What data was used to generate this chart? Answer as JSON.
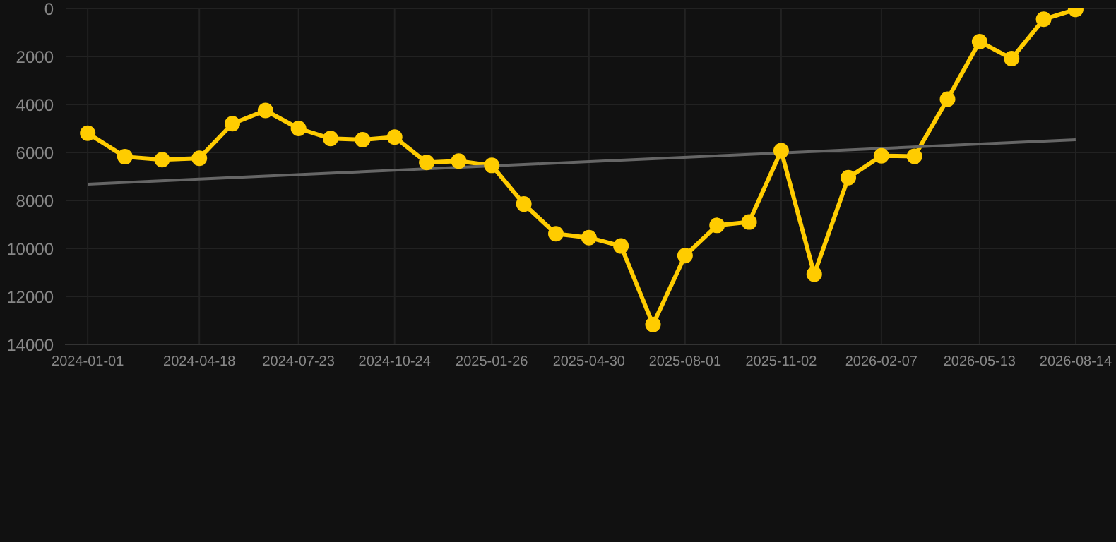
{
  "chart_data": {
    "type": "line",
    "x": [
      "2024-01-01",
      "2024-02-06",
      "2024-03-13",
      "2024-04-18",
      "2024-05-20",
      "2024-06-21",
      "2024-07-23",
      "2024-08-23",
      "2024-09-23",
      "2024-10-24",
      "2024-11-24",
      "2024-12-25",
      "2025-01-26",
      "2025-02-26",
      "2025-03-29",
      "2025-04-30",
      "2025-05-31",
      "2025-07-01",
      "2025-08-01",
      "2025-09-01",
      "2025-10-02",
      "2025-11-02",
      "2025-12-04",
      "2026-01-06",
      "2026-02-07",
      "2026-03-11",
      "2026-04-12",
      "2026-05-13",
      "2026-06-13",
      "2026-07-14",
      "2026-08-14"
    ],
    "series": [
      {
        "color": "#ffcc00",
        "marker": "circle",
        "values": [
          5200,
          6180,
          6300,
          6240,
          4800,
          4250,
          5000,
          5420,
          5470,
          5360,
          6420,
          6360,
          6540,
          8150,
          9390,
          9550,
          9900,
          13170,
          10300,
          9040,
          8900,
          5930,
          11070,
          7050,
          6140,
          6160,
          3780,
          1380,
          2090,
          450,
          40
        ]
      },
      {
        "type": "line",
        "color": "#666666",
        "marker": "none",
        "x": [
          "2024-01-01",
          "2026-08-14"
        ],
        "values": [
          7320,
          5470
        ]
      }
    ],
    "xlim": [
      "2023-12-10",
      "2026-09-22"
    ],
    "xticks": [
      "2024-01-01",
      "2024-04-18",
      "2024-07-23",
      "2024-10-24",
      "2025-01-26",
      "2025-04-30",
      "2025-08-01",
      "2025-11-02",
      "2026-02-07",
      "2026-05-13",
      "2026-08-14"
    ],
    "ylim": [
      14000,
      0
    ],
    "yticks": [
      0,
      2000,
      4000,
      6000,
      8000,
      10000,
      12000,
      14000
    ],
    "grid": true
  }
}
